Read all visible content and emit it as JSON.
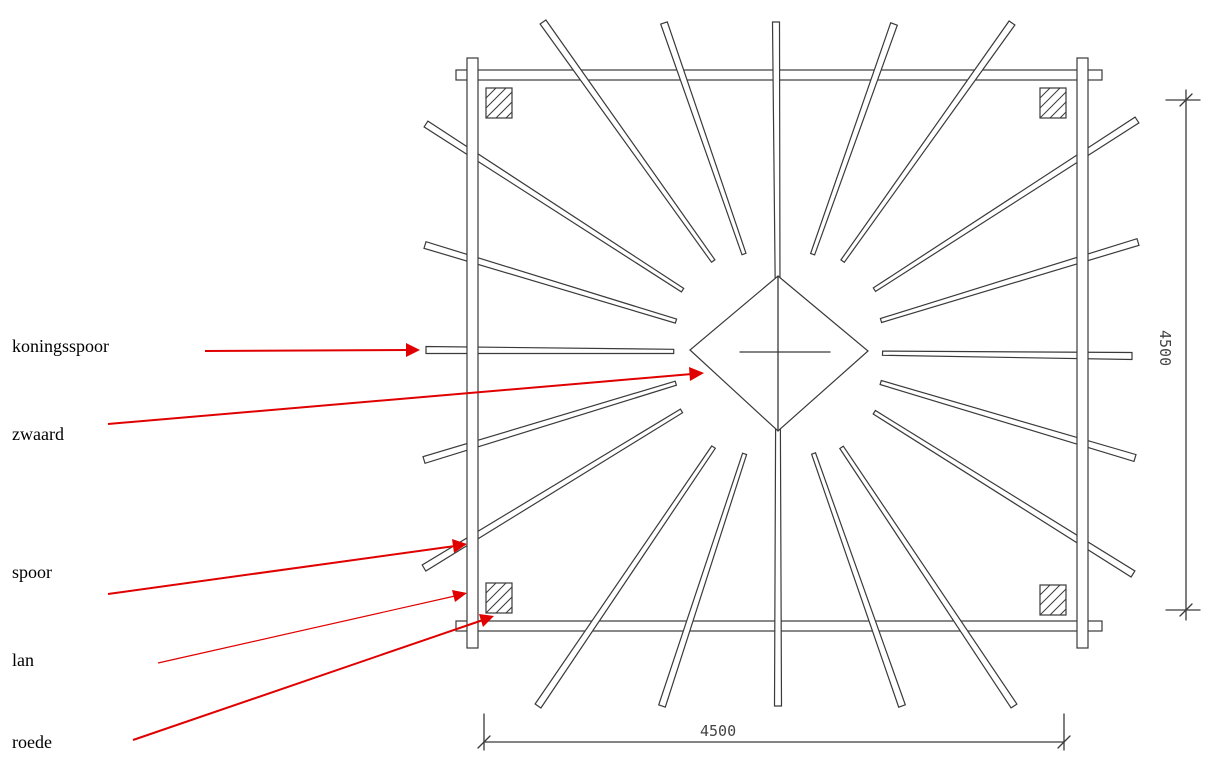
{
  "labels": {
    "koningsspoor": "koningsspoor",
    "zwaard": "zwaard",
    "spoor": "spoor",
    "lan": "lan",
    "roede": "roede"
  },
  "dimensions": {
    "horizontal": "4500",
    "vertical": "4500"
  },
  "colors": {
    "arrow": "#e00000",
    "pencil": "#3a3a3a"
  }
}
